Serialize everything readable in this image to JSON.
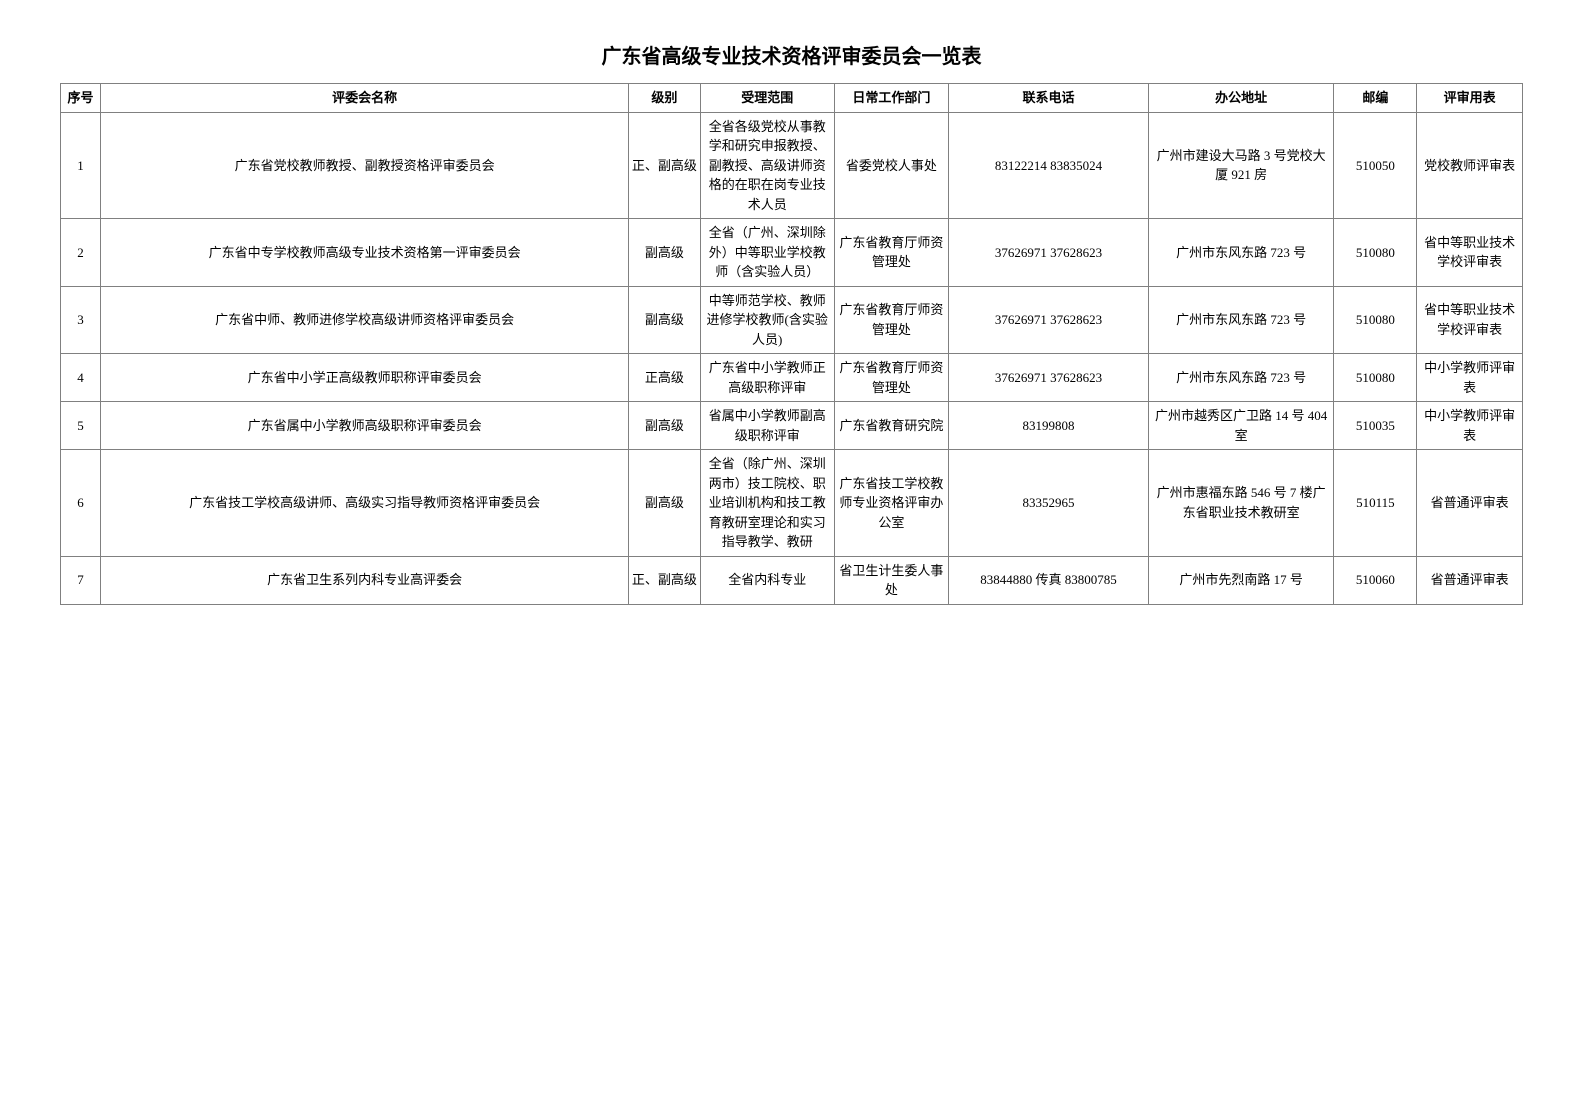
{
  "title": "广东省高级专业技术资格评审委员会一览表",
  "headers": {
    "seq": "序号",
    "name": "评委会名称",
    "level": "级别",
    "scope": "受理范围",
    "dept": "日常工作部门",
    "tel": "联系电话",
    "addr": "办公地址",
    "zip": "邮编",
    "form": "评审用表"
  },
  "rows": [
    {
      "seq": "1",
      "name": "广东省党校教师教授、副教授资格评审委员会",
      "level": "正、副高级",
      "scope": "全省各级党校从事教学和研究申报教授、副教授、高级讲师资格的在职在岗专业技术人员",
      "dept": "省委党校人事处",
      "tel": "83122214 83835024",
      "addr": "广州市建设大马路 3 号党校大厦 921 房",
      "zip": "510050",
      "form": "党校教师评审表"
    },
    {
      "seq": "2",
      "name": "广东省中专学校教师高级专业技术资格第一评审委员会",
      "level": "副高级",
      "scope": "全省（广州、深圳除外）中等职业学校教师（含实验人员）",
      "dept": "广东省教育厅师资管理处",
      "tel": "37626971 37628623",
      "addr": "广州市东风东路 723 号",
      "zip": "510080",
      "form": "省中等职业技术学校评审表"
    },
    {
      "seq": "3",
      "name": "广东省中师、教师进修学校高级讲师资格评审委员会",
      "level": "副高级",
      "scope": "中等师范学校、教师进修学校教师(含实验人员)",
      "dept": "广东省教育厅师资管理处",
      "tel": "37626971 37628623",
      "addr": "广州市东风东路 723 号",
      "zip": "510080",
      "form": "省中等职业技术学校评审表"
    },
    {
      "seq": "4",
      "name": "广东省中小学正高级教师职称评审委员会",
      "level": "正高级",
      "scope": "广东省中小学教师正高级职称评审",
      "dept": "广东省教育厅师资管理处",
      "tel": "37626971 37628623",
      "addr": "广州市东风东路 723 号",
      "zip": "510080",
      "form": "中小学教师评审表"
    },
    {
      "seq": "5",
      "name": "广东省属中小学教师高级职称评审委员会",
      "level": "副高级",
      "scope": "省属中小学教师副高级职称评审",
      "dept": "广东省教育研究院",
      "tel": "83199808",
      "addr": "广州市越秀区广卫路 14 号 404 室",
      "zip": "510035",
      "form": "中小学教师评审表"
    },
    {
      "seq": "6",
      "name": "广东省技工学校高级讲师、高级实习指导教师资格评审委员会",
      "level": "副高级",
      "scope": "全省（除广州、深圳两市）技工院校、职业培训机构和技工教育教研室理论和实习指导教学、教研",
      "dept": "广东省技工学校教师专业资格评审办公室",
      "tel": "83352965",
      "addr": "广州市惠福东路 546 号 7 楼广东省职业技术教研室",
      "zip": "510115",
      "form": "省普通评审表"
    },
    {
      "seq": "7",
      "name": "广东省卫生系列内科专业高评委会",
      "level": "正、副高级",
      "scope": "全省内科专业",
      "dept": "省卫生计生委人事处",
      "tel": "83844880 传真 83800785",
      "addr": "广州市先烈南路 17 号",
      "zip": "510060",
      "form": "省普通评审表"
    }
  ]
}
